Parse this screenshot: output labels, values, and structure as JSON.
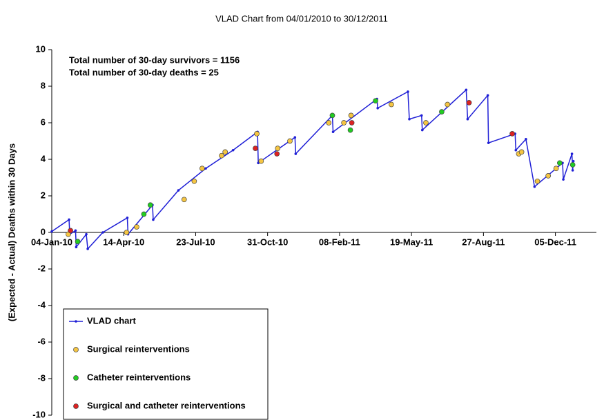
{
  "chart_data": {
    "type": "line",
    "title": "VLAD Chart from 04/01/2010 to 30/12/2011",
    "annotations": [
      "Total number of 30-day survivors = 1156",
      "Total number of 30-day deaths = 25"
    ],
    "y_label": "(Expected - Actual) Deaths within 30 Days",
    "xlim": [
      "2010-01-04",
      "2012-01-31"
    ],
    "xticks": [
      {
        "value": "2010-01-04",
        "label": "04-Jan-10"
      },
      {
        "value": "2010-04-14",
        "label": "14-Apr-10"
      },
      {
        "value": "2010-07-23",
        "label": "23-Jul-10"
      },
      {
        "value": "2010-10-31",
        "label": "31-Oct-10"
      },
      {
        "value": "2011-02-08",
        "label": "08-Feb-11"
      },
      {
        "value": "2011-05-19",
        "label": "19-May-11"
      },
      {
        "value": "2011-08-27",
        "label": "27-Aug-11"
      },
      {
        "value": "2011-12-05",
        "label": "05-Dec-11"
      }
    ],
    "ylim": [
      -10,
      10
    ],
    "yticks": [
      -10,
      -8,
      -6,
      -4,
      -2,
      0,
      2,
      4,
      6,
      8,
      10
    ],
    "legend": "lower left",
    "series": [
      {
        "name": "VLAD chart",
        "type": "line",
        "color": "#1f1fd6",
        "x": [
          "2010-01-04",
          "2010-01-28",
          "2010-01-29",
          "2010-02-06",
          "2010-02-07",
          "2010-02-21",
          "2010-02-23",
          "2010-03-16",
          "2010-04-19",
          "2010-04-20",
          "2010-05-24",
          "2010-05-25",
          "2010-06-29",
          "2010-08-06",
          "2010-09-13",
          "2010-10-17",
          "2010-10-18",
          "2010-12-08",
          "2010-12-09",
          "2011-01-29",
          "2011-01-30",
          "2011-04-01",
          "2011-04-02",
          "2011-05-14",
          "2011-05-16",
          "2011-06-02",
          "2011-06-03",
          "2011-08-03",
          "2011-08-05",
          "2011-09-02",
          "2011-09-03",
          "2011-10-10",
          "2011-10-11",
          "2011-10-25",
          "2011-11-06",
          "2011-12-15",
          "2011-12-16",
          "2011-12-28",
          "2011-12-29",
          "2011-12-30"
        ],
        "values": [
          0.05,
          0.7,
          -0.1,
          0.1,
          -0.8,
          -0.1,
          -0.9,
          0.0,
          0.8,
          -0.1,
          1.5,
          0.7,
          2.3,
          3.5,
          4.5,
          5.5,
          3.8,
          5.2,
          4.3,
          6.4,
          5.5,
          7.3,
          6.8,
          7.7,
          6.2,
          6.4,
          5.6,
          7.8,
          6.2,
          7.5,
          4.9,
          5.4,
          4.5,
          5.1,
          2.5,
          3.8,
          2.9,
          4.3,
          3.4,
          3.9
        ]
      },
      {
        "name": "Surgical reinterventions",
        "type": "scatter",
        "color": "#f5c542",
        "x": [
          "2010-01-27",
          "2010-04-18",
          "2010-05-02",
          "2010-07-07",
          "2010-07-21",
          "2010-08-01",
          "2010-08-28",
          "2010-09-02",
          "2010-10-16",
          "2010-10-22",
          "2010-11-14",
          "2010-12-01",
          "2011-01-24",
          "2011-02-14",
          "2011-02-24",
          "2011-04-21",
          "2011-06-08",
          "2011-07-08",
          "2011-10-15",
          "2011-10-19",
          "2011-11-10",
          "2011-11-25",
          "2011-12-06"
        ],
        "values": [
          -0.1,
          0.0,
          0.3,
          1.8,
          2.8,
          3.5,
          4.2,
          4.4,
          5.4,
          3.9,
          4.6,
          5.0,
          6.0,
          6.0,
          6.4,
          7.0,
          6.0,
          7.0,
          4.3,
          4.4,
          2.8,
          3.1,
          3.5
        ]
      },
      {
        "name": "Catheter reinterventions",
        "type": "scatter",
        "color": "#22cc22",
        "x": [
          "2010-02-09",
          "2010-05-12",
          "2010-05-21",
          "2011-01-29",
          "2011-02-23",
          "2011-03-30",
          "2011-06-30",
          "2011-12-11",
          "2011-12-29"
        ],
        "values": [
          -0.5,
          1.0,
          1.5,
          6.4,
          5.6,
          7.2,
          6.6,
          3.8,
          3.7
        ]
      },
      {
        "name": "Surgical and catheter reinterventions",
        "type": "scatter",
        "color": "#dd2222",
        "x": [
          "2010-01-30",
          "2010-10-14",
          "2010-11-13",
          "2011-02-25",
          "2011-08-07",
          "2011-10-06"
        ],
        "values": [
          0.1,
          4.6,
          4.3,
          6.0,
          7.1,
          5.4
        ]
      }
    ]
  }
}
